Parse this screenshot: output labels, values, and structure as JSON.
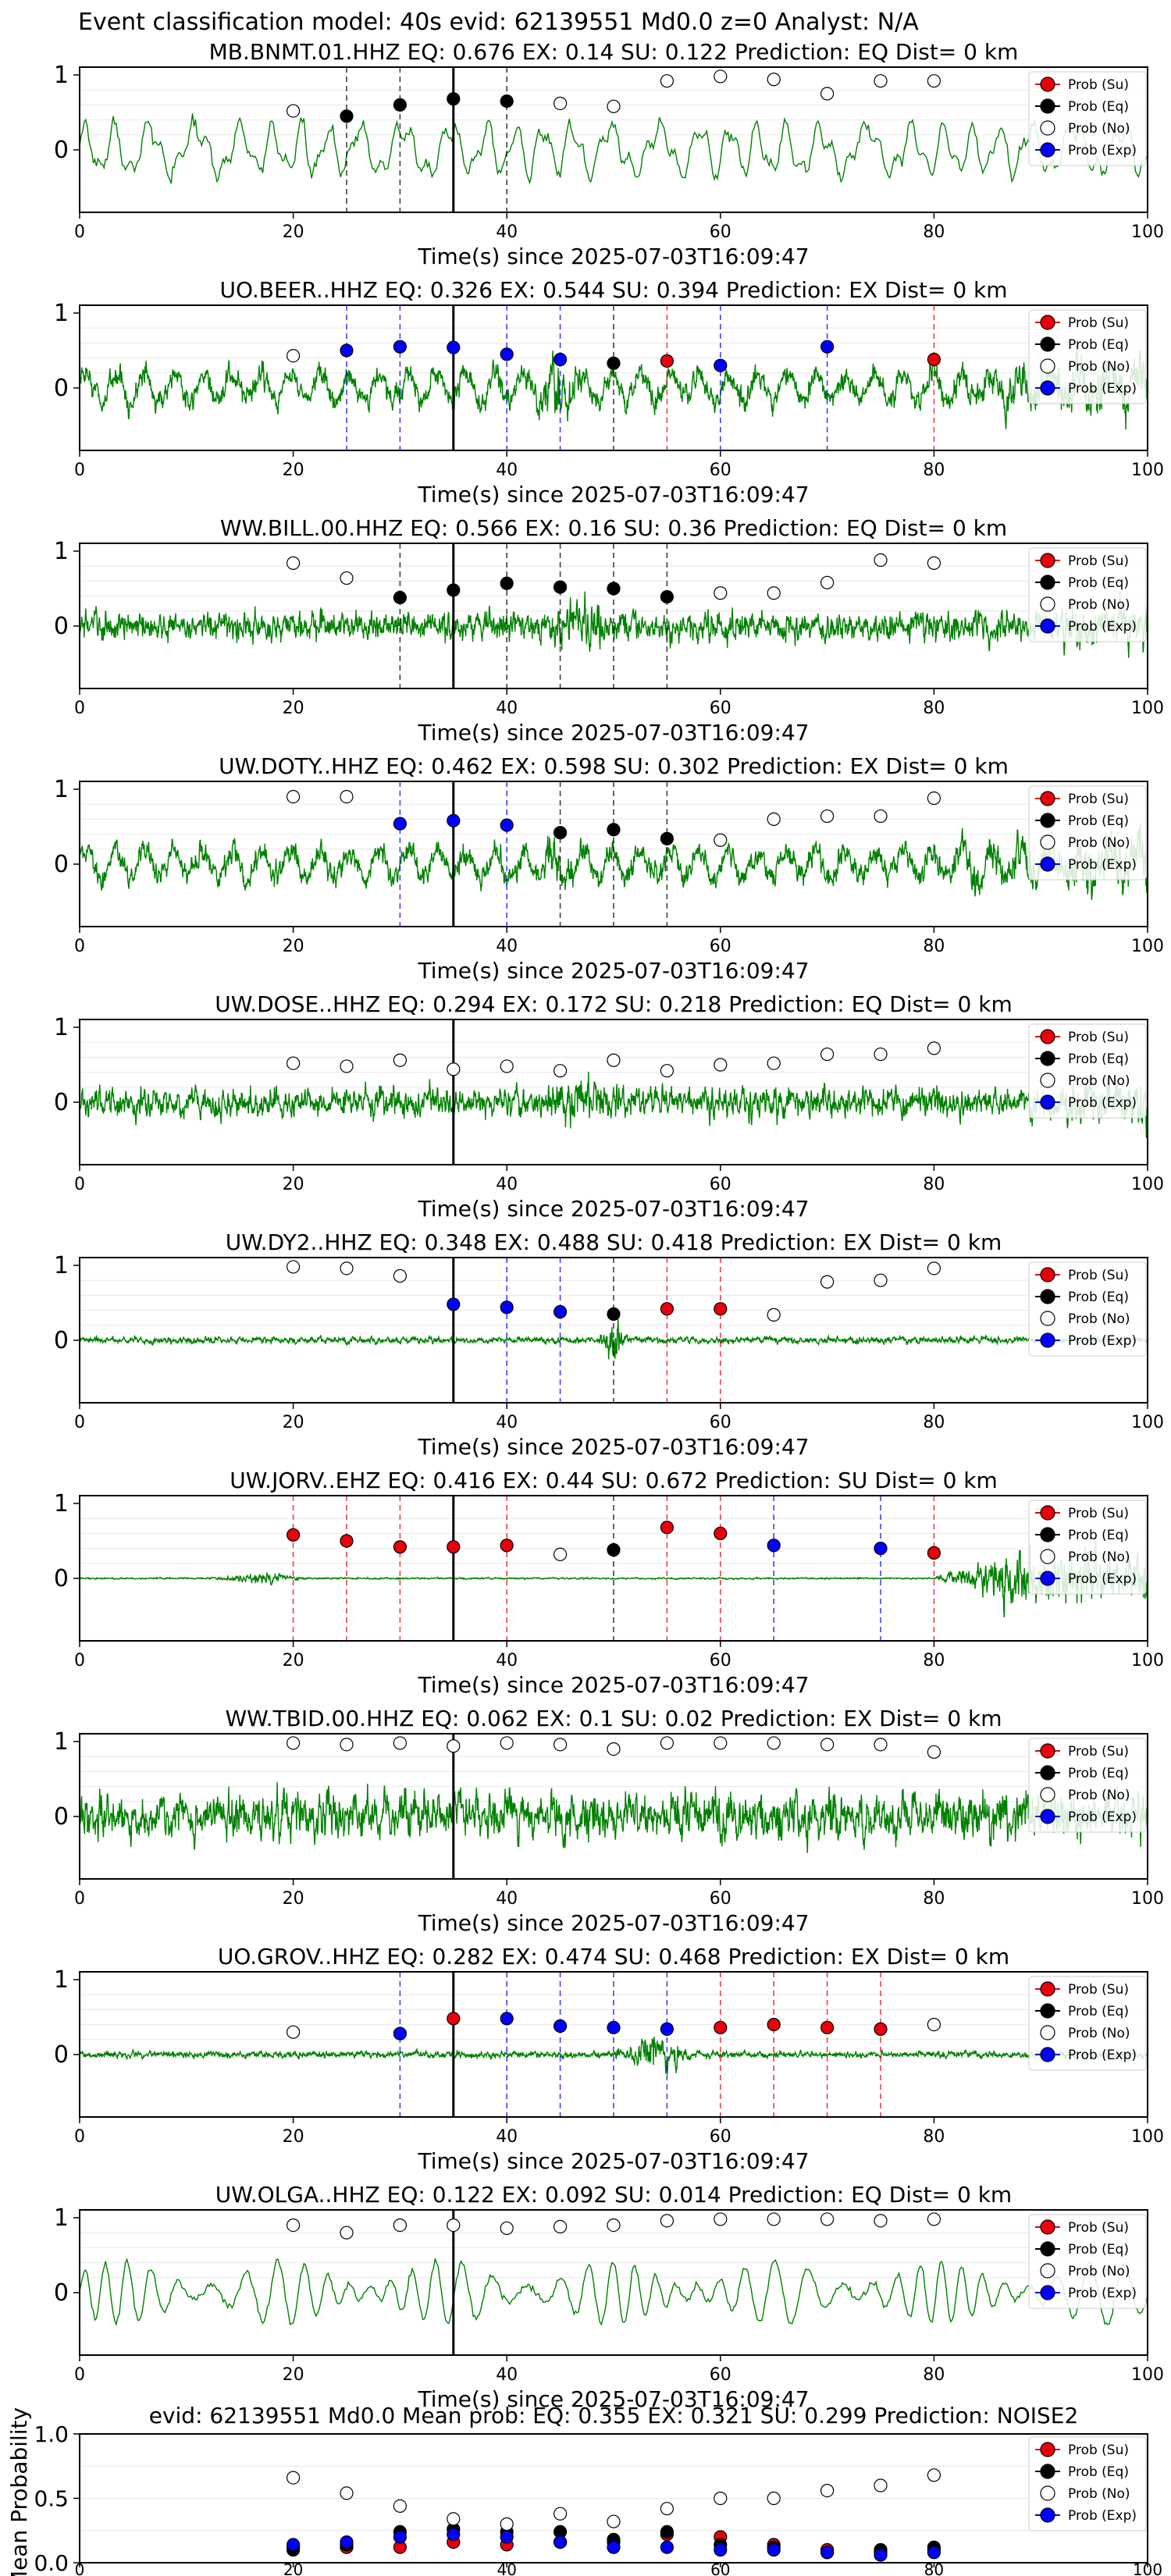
{
  "figure_title": "Event classification model: 40s evid: 62139551 Md0.0 z=0 Analyst: N/A",
  "legend_labels": [
    "Prob (Su)",
    "Prob (Eq)",
    "Prob (No)",
    "Prob (Exp)"
  ],
  "colors": {
    "su": "#e8000b",
    "eq": "#000000",
    "no": "#ffffff",
    "exp": "#0000ff",
    "trace": "#008000",
    "arrival_line": "#000000",
    "axis": "#000000"
  },
  "x_ticks": [
    "0",
    "20",
    "40",
    "60",
    "80",
    "100"
  ],
  "chart_data": [
    {
      "type": "line",
      "station": "MB.BNMT.01.HHZ",
      "title": "MB.BNMT.01.HHZ   EQ: 0.676  EX: 0.14  SU: 0.122   Prediction: EQ    Dist= 0 km",
      "xlabel": "Time(s) since 2025-07-03T16:09:47",
      "xlim": [
        0,
        100
      ],
      "yticks": [
        "1",
        "0"
      ],
      "trace_style": "low",
      "arrival_time": 35,
      "windows": [
        {
          "t": 20,
          "class": "no",
          "p": 0.52
        },
        {
          "t": 25,
          "class": "eq",
          "p": 0.45
        },
        {
          "t": 30,
          "class": "eq",
          "p": 0.6
        },
        {
          "t": 35,
          "class": "eq",
          "p": 0.68
        },
        {
          "t": 40,
          "class": "eq",
          "p": 0.65
        },
        {
          "t": 45,
          "class": "no",
          "p": 0.62
        },
        {
          "t": 50,
          "class": "no",
          "p": 0.58
        },
        {
          "t": 55,
          "class": "no",
          "p": 0.92
        },
        {
          "t": 60,
          "class": "no",
          "p": 0.98
        },
        {
          "t": 65,
          "class": "no",
          "p": 0.94
        },
        {
          "t": 70,
          "class": "no",
          "p": 0.75
        },
        {
          "t": 75,
          "class": "no",
          "p": 0.92
        },
        {
          "t": 80,
          "class": "no",
          "p": 0.92
        }
      ],
      "markers": [
        25,
        30,
        40
      ]
    },
    {
      "type": "line",
      "station": "UO.BEER..HHZ",
      "title": "UO.BEER..HHZ   EQ: 0.326  EX: 0.544  SU: 0.394   Prediction: EX    Dist= 0 km",
      "xlabel": "Time(s) since 2025-07-03T16:09:47",
      "xlim": [
        0,
        100
      ],
      "yticks": [
        "1",
        "0"
      ],
      "trace_style": "mixed",
      "arrival_time": 35,
      "windows": [
        {
          "t": 20,
          "class": "no",
          "p": 0.43
        },
        {
          "t": 25,
          "class": "exp",
          "p": 0.5
        },
        {
          "t": 30,
          "class": "exp",
          "p": 0.55
        },
        {
          "t": 35,
          "class": "exp",
          "p": 0.54
        },
        {
          "t": 40,
          "class": "exp",
          "p": 0.45
        },
        {
          "t": 45,
          "class": "exp",
          "p": 0.38
        },
        {
          "t": 50,
          "class": "eq",
          "p": 0.33
        },
        {
          "t": 55,
          "class": "su",
          "p": 0.36
        },
        {
          "t": 60,
          "class": "exp",
          "p": 0.3
        },
        {
          "t": 70,
          "class": "exp",
          "p": 0.55
        },
        {
          "t": 80,
          "class": "su",
          "p": 0.38
        }
      ],
      "markers": [
        25,
        30,
        40,
        45,
        50,
        55,
        60,
        70,
        80
      ]
    },
    {
      "type": "line",
      "station": "WW.BILL.00.HHZ",
      "title": "WW.BILL.00.HHZ   EQ: 0.566  EX: 0.16  SU: 0.36   Prediction: EQ    Dist= 0 km",
      "xlabel": "Time(s) since 2025-07-03T16:09:47",
      "xlim": [
        0,
        100
      ],
      "yticks": [
        "1",
        "0"
      ],
      "trace_style": "noise",
      "arrival_time": 35,
      "windows": [
        {
          "t": 20,
          "class": "no",
          "p": 0.84
        },
        {
          "t": 25,
          "class": "no",
          "p": 0.64
        },
        {
          "t": 30,
          "class": "eq",
          "p": 0.38
        },
        {
          "t": 35,
          "class": "eq",
          "p": 0.48
        },
        {
          "t": 40,
          "class": "eq",
          "p": 0.57
        },
        {
          "t": 45,
          "class": "eq",
          "p": 0.52
        },
        {
          "t": 50,
          "class": "eq",
          "p": 0.5
        },
        {
          "t": 55,
          "class": "eq",
          "p": 0.39
        },
        {
          "t": 60,
          "class": "no",
          "p": 0.44
        },
        {
          "t": 65,
          "class": "no",
          "p": 0.44
        },
        {
          "t": 70,
          "class": "no",
          "p": 0.58
        },
        {
          "t": 75,
          "class": "no",
          "p": 0.88
        },
        {
          "t": 80,
          "class": "no",
          "p": 0.84
        }
      ],
      "markers": [
        30,
        40,
        45,
        50,
        55
      ]
    },
    {
      "type": "line",
      "station": "UW.DOTY..HHZ",
      "title": "UW.DOTY..HHZ   EQ: 0.462  EX: 0.598  SU: 0.302   Prediction: EX    Dist= 0 km",
      "xlabel": "Time(s) since 2025-07-03T16:09:47",
      "xlim": [
        0,
        100
      ],
      "yticks": [
        "1",
        "0"
      ],
      "trace_style": "mixed",
      "arrival_time": 35,
      "windows": [
        {
          "t": 20,
          "class": "no",
          "p": 0.9
        },
        {
          "t": 25,
          "class": "no",
          "p": 0.9
        },
        {
          "t": 30,
          "class": "exp",
          "p": 0.54
        },
        {
          "t": 35,
          "class": "exp",
          "p": 0.58
        },
        {
          "t": 40,
          "class": "exp",
          "p": 0.52
        },
        {
          "t": 45,
          "class": "eq",
          "p": 0.42
        },
        {
          "t": 50,
          "class": "eq",
          "p": 0.46
        },
        {
          "t": 55,
          "class": "eq",
          "p": 0.34
        },
        {
          "t": 60,
          "class": "no",
          "p": 0.32
        },
        {
          "t": 65,
          "class": "no",
          "p": 0.6
        },
        {
          "t": 70,
          "class": "no",
          "p": 0.64
        },
        {
          "t": 75,
          "class": "no",
          "p": 0.64
        },
        {
          "t": 80,
          "class": "no",
          "p": 0.88
        }
      ],
      "markers": [
        30,
        40,
        45,
        50,
        55
      ]
    },
    {
      "type": "line",
      "station": "UW.DOSE..HHZ",
      "title": "UW.DOSE..HHZ   EQ: 0.294  EX: 0.172  SU: 0.218   Prediction: EQ    Dist= 0 km",
      "xlabel": "Time(s) since 2025-07-03T16:09:47",
      "xlim": [
        0,
        100
      ],
      "yticks": [
        "1",
        "0"
      ],
      "trace_style": "noise",
      "arrival_time": 35,
      "windows": [
        {
          "t": 20,
          "class": "no",
          "p": 0.52
        },
        {
          "t": 25,
          "class": "no",
          "p": 0.48
        },
        {
          "t": 30,
          "class": "no",
          "p": 0.56
        },
        {
          "t": 35,
          "class": "no",
          "p": 0.44
        },
        {
          "t": 40,
          "class": "no",
          "p": 0.48
        },
        {
          "t": 45,
          "class": "no",
          "p": 0.42
        },
        {
          "t": 50,
          "class": "no",
          "p": 0.56
        },
        {
          "t": 55,
          "class": "no",
          "p": 0.42
        },
        {
          "t": 60,
          "class": "no",
          "p": 0.5
        },
        {
          "t": 65,
          "class": "no",
          "p": 0.52
        },
        {
          "t": 70,
          "class": "no",
          "p": 0.64
        },
        {
          "t": 75,
          "class": "no",
          "p": 0.64
        },
        {
          "t": 80,
          "class": "no",
          "p": 0.72
        }
      ],
      "markers": []
    },
    {
      "type": "line",
      "station": "UW.DY2..HHZ",
      "title": "UW.DY2..HHZ   EQ: 0.348  EX: 0.488  SU: 0.418   Prediction: EX    Dist= 0 km",
      "xlabel": "Time(s) since 2025-07-03T16:09:47",
      "xlim": [
        0,
        100
      ],
      "yticks": [
        "1",
        "0"
      ],
      "trace_style": "quiet",
      "arrival_time": 35,
      "windows": [
        {
          "t": 20,
          "class": "no",
          "p": 0.98
        },
        {
          "t": 25,
          "class": "no",
          "p": 0.96
        },
        {
          "t": 30,
          "class": "no",
          "p": 0.86
        },
        {
          "t": 35,
          "class": "exp",
          "p": 0.48
        },
        {
          "t": 40,
          "class": "exp",
          "p": 0.44
        },
        {
          "t": 45,
          "class": "exp",
          "p": 0.38
        },
        {
          "t": 50,
          "class": "eq",
          "p": 0.35
        },
        {
          "t": 55,
          "class": "su",
          "p": 0.42
        },
        {
          "t": 60,
          "class": "su",
          "p": 0.42
        },
        {
          "t": 65,
          "class": "no",
          "p": 0.34
        },
        {
          "t": 70,
          "class": "no",
          "p": 0.78
        },
        {
          "t": 75,
          "class": "no",
          "p": 0.8
        },
        {
          "t": 80,
          "class": "no",
          "p": 0.96
        }
      ],
      "markers": [
        40,
        45,
        50,
        55,
        60
      ]
    },
    {
      "type": "line",
      "station": "UW.JORV..EHZ",
      "title": "UW.JORV..EHZ   EQ: 0.416  EX: 0.44  SU: 0.672   Prediction: SU    Dist= 0 km",
      "xlabel": "Time(s) since 2025-07-03T16:09:47",
      "xlim": [
        0,
        100
      ],
      "yticks": [
        "1",
        "0"
      ],
      "trace_style": "jorv",
      "arrival_time": 35,
      "windows": [
        {
          "t": 20,
          "class": "su",
          "p": 0.58
        },
        {
          "t": 25,
          "class": "su",
          "p": 0.5
        },
        {
          "t": 30,
          "class": "su",
          "p": 0.42
        },
        {
          "t": 35,
          "class": "su",
          "p": 0.42
        },
        {
          "t": 40,
          "class": "su",
          "p": 0.44
        },
        {
          "t": 45,
          "class": "no",
          "p": 0.32
        },
        {
          "t": 50,
          "class": "eq",
          "p": 0.38
        },
        {
          "t": 55,
          "class": "su",
          "p": 0.68
        },
        {
          "t": 60,
          "class": "su",
          "p": 0.6
        },
        {
          "t": 65,
          "class": "exp",
          "p": 0.44
        },
        {
          "t": 75,
          "class": "exp",
          "p": 0.4
        },
        {
          "t": 80,
          "class": "su",
          "p": 0.34
        }
      ],
      "markers": [
        20,
        25,
        30,
        40,
        50,
        55,
        60,
        65,
        75,
        80
      ]
    },
    {
      "type": "line",
      "station": "WW.TBID.00.HHZ",
      "title": "WW.TBID.00.HHZ   EQ: 0.062  EX: 0.1  SU: 0.02   Prediction: EX    Dist= 0 km",
      "xlabel": "Time(s) since 2025-07-03T16:09:47",
      "xlim": [
        0,
        100
      ],
      "yticks": [
        "1",
        "0"
      ],
      "trace_style": "loud",
      "arrival_time": 35,
      "windows": [
        {
          "t": 20,
          "class": "no",
          "p": 0.98
        },
        {
          "t": 25,
          "class": "no",
          "p": 0.96
        },
        {
          "t": 30,
          "class": "no",
          "p": 0.98
        },
        {
          "t": 35,
          "class": "no",
          "p": 0.94
        },
        {
          "t": 40,
          "class": "no",
          "p": 0.98
        },
        {
          "t": 45,
          "class": "no",
          "p": 0.96
        },
        {
          "t": 50,
          "class": "no",
          "p": 0.9
        },
        {
          "t": 55,
          "class": "no",
          "p": 0.98
        },
        {
          "t": 60,
          "class": "no",
          "p": 0.98
        },
        {
          "t": 65,
          "class": "no",
          "p": 0.98
        },
        {
          "t": 70,
          "class": "no",
          "p": 0.96
        },
        {
          "t": 75,
          "class": "no",
          "p": 0.96
        },
        {
          "t": 80,
          "class": "no",
          "p": 0.86
        }
      ],
      "markers": []
    },
    {
      "type": "line",
      "station": "UO.GROV..HHZ",
      "title": "UO.GROV..HHZ   EQ: 0.282  EX: 0.474  SU: 0.468   Prediction: EX    Dist= 0 km",
      "xlabel": "Time(s) since 2025-07-03T16:09:47",
      "xlim": [
        0,
        100
      ],
      "yticks": [
        "1",
        "0"
      ],
      "trace_style": "grov",
      "arrival_time": 35,
      "windows": [
        {
          "t": 20,
          "class": "no",
          "p": 0.3
        },
        {
          "t": 30,
          "class": "exp",
          "p": 0.28
        },
        {
          "t": 35,
          "class": "su",
          "p": 0.48
        },
        {
          "t": 40,
          "class": "exp",
          "p": 0.48
        },
        {
          "t": 45,
          "class": "exp",
          "p": 0.38
        },
        {
          "t": 50,
          "class": "exp",
          "p": 0.36
        },
        {
          "t": 55,
          "class": "exp",
          "p": 0.34
        },
        {
          "t": 60,
          "class": "su",
          "p": 0.36
        },
        {
          "t": 65,
          "class": "su",
          "p": 0.4
        },
        {
          "t": 70,
          "class": "su",
          "p": 0.36
        },
        {
          "t": 75,
          "class": "su",
          "p": 0.34
        },
        {
          "t": 80,
          "class": "no",
          "p": 0.4
        }
      ],
      "markers": [
        30,
        40,
        45,
        50,
        55,
        60,
        65,
        70,
        75
      ]
    },
    {
      "type": "line",
      "station": "UW.OLGA..HHZ",
      "title": "UW.OLGA..HHZ   EQ: 0.122  EX: 0.092  SU: 0.014   Prediction: EQ    Dist= 0 km",
      "xlabel": "Time(s) since 2025-07-03T16:09:47",
      "xlim": [
        0,
        100
      ],
      "yticks": [
        "1",
        "0"
      ],
      "trace_style": "olga",
      "arrival_time": 35,
      "windows": [
        {
          "t": 20,
          "class": "no",
          "p": 0.9
        },
        {
          "t": 25,
          "class": "no",
          "p": 0.8
        },
        {
          "t": 30,
          "class": "no",
          "p": 0.9
        },
        {
          "t": 35,
          "class": "no",
          "p": 0.9
        },
        {
          "t": 40,
          "class": "no",
          "p": 0.86
        },
        {
          "t": 45,
          "class": "no",
          "p": 0.88
        },
        {
          "t": 50,
          "class": "no",
          "p": 0.9
        },
        {
          "t": 55,
          "class": "no",
          "p": 0.96
        },
        {
          "t": 60,
          "class": "no",
          "p": 0.98
        },
        {
          "t": 65,
          "class": "no",
          "p": 0.98
        },
        {
          "t": 70,
          "class": "no",
          "p": 0.98
        },
        {
          "t": 75,
          "class": "no",
          "p": 0.96
        },
        {
          "t": 80,
          "class": "no",
          "p": 0.98
        }
      ],
      "markers": []
    },
    {
      "type": "scatter",
      "title": "evid: 62139551  Md0.0   Mean prob:   EQ: 0.355  EX: 0.321  SU: 0.299   Prediction: NOISE2",
      "ylabel": "Mean Probability",
      "xlim": [
        0,
        100
      ],
      "ylim": [
        0,
        1
      ],
      "yticks": [
        "0.0",
        "0.5",
        "1.0"
      ],
      "x": [
        20,
        25,
        30,
        35,
        40,
        45,
        50,
        55,
        60,
        65,
        70,
        75,
        80
      ],
      "series": [
        {
          "key": "su",
          "name": "Prob (Su)",
          "values": [
            0.12,
            0.12,
            0.12,
            0.16,
            0.14,
            0.16,
            0.16,
            0.22,
            0.2,
            0.14,
            0.1,
            0.08,
            0.1
          ]
        },
        {
          "key": "eq",
          "name": "Prob (Eq)",
          "values": [
            0.1,
            0.14,
            0.24,
            0.26,
            0.24,
            0.24,
            0.18,
            0.24,
            0.14,
            0.12,
            0.08,
            0.1,
            0.12
          ]
        },
        {
          "key": "no",
          "name": "Prob (No)",
          "values": [
            0.66,
            0.54,
            0.44,
            0.34,
            0.3,
            0.38,
            0.32,
            0.42,
            0.5,
            0.5,
            0.56,
            0.6,
            0.68
          ]
        },
        {
          "key": "exp",
          "name": "Prob (Exp)",
          "values": [
            0.14,
            0.16,
            0.2,
            0.22,
            0.2,
            0.16,
            0.12,
            0.12,
            0.1,
            0.1,
            0.08,
            0.06,
            0.08
          ]
        }
      ]
    }
  ]
}
